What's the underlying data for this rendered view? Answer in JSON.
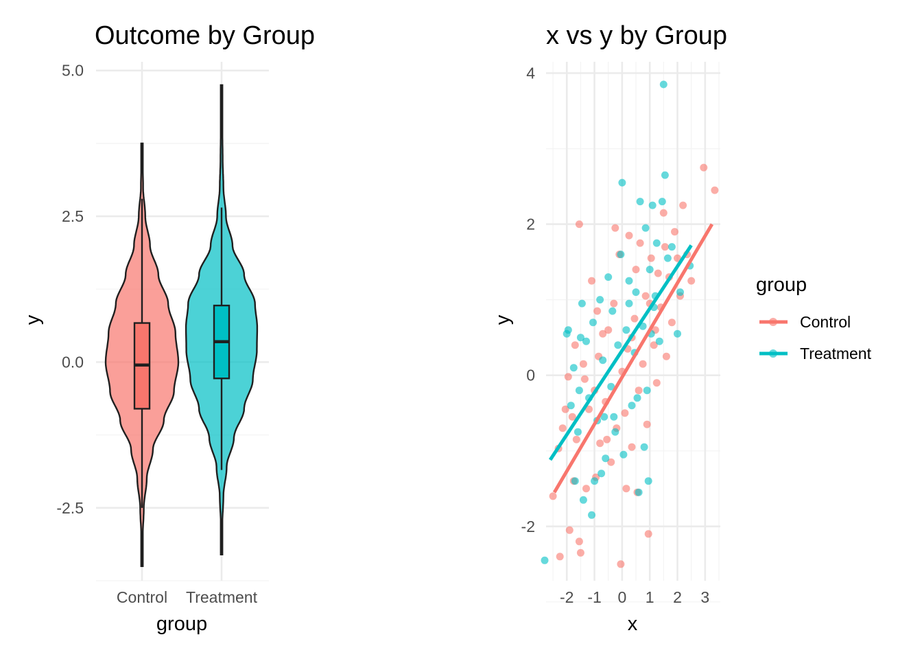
{
  "chart_data": [
    {
      "type": "violin",
      "title": "Outcome by Group",
      "xlabel": "group",
      "ylabel": "y",
      "categories": [
        "Control",
        "Treatment"
      ],
      "yticks": [
        -2.5,
        0.0,
        2.5,
        5.0
      ],
      "ytick_labels": [
        "-2.5",
        "0.0",
        "2.5",
        "5.0"
      ],
      "ylim": [
        -3.75,
        5.15
      ],
      "series": [
        {
          "name": "Control",
          "violin_min": -3.5,
          "violin_max": 3.75,
          "box": {
            "q1": -0.8,
            "median": -0.05,
            "q3": 0.67,
            "whisker_low": -2.5,
            "whisker_high": 2.8
          },
          "density_profile": [
            [
              -3.5,
              0.0
            ],
            [
              -3.0,
              0.02
            ],
            [
              -2.5,
              0.05
            ],
            [
              -2.0,
              0.13
            ],
            [
              -1.5,
              0.3
            ],
            [
              -1.0,
              0.6
            ],
            [
              -0.5,
              0.88
            ],
            [
              0.0,
              1.0
            ],
            [
              0.5,
              0.92
            ],
            [
              1.0,
              0.72
            ],
            [
              1.5,
              0.45
            ],
            [
              2.0,
              0.22
            ],
            [
              2.5,
              0.09
            ],
            [
              3.0,
              0.03
            ],
            [
              3.75,
              0.0
            ]
          ]
        },
        {
          "name": "Treatment",
          "violin_min": -3.3,
          "violin_max": 4.75,
          "box": {
            "q1": -0.28,
            "median": 0.35,
            "q3": 0.97,
            "whisker_low": -1.85,
            "whisker_high": 2.65
          },
          "density_profile": [
            [
              -3.3,
              0.0
            ],
            [
              -2.8,
              0.02
            ],
            [
              -2.3,
              0.05
            ],
            [
              -1.8,
              0.14
            ],
            [
              -1.3,
              0.34
            ],
            [
              -0.8,
              0.62
            ],
            [
              -0.3,
              0.86
            ],
            [
              0.2,
              0.97
            ],
            [
              0.6,
              0.98
            ],
            [
              1.0,
              0.92
            ],
            [
              1.5,
              0.62
            ],
            [
              2.0,
              0.3
            ],
            [
              2.5,
              0.12
            ],
            [
              3.0,
              0.05
            ],
            [
              3.5,
              0.03
            ],
            [
              4.0,
              0.02
            ],
            [
              4.75,
              0.0
            ]
          ]
        }
      ],
      "colors": {
        "Control": "#F8766D",
        "Treatment": "#00BFC4"
      }
    },
    {
      "type": "scatter",
      "title": "x vs y by Group",
      "xlabel": "x",
      "ylabel": "y",
      "xticks": [
        -2,
        -1,
        0,
        1,
        2,
        3
      ],
      "xtick_labels": [
        "-2",
        "-1",
        "0",
        "1",
        "2",
        "3"
      ],
      "yticks": [
        -2,
        0,
        2,
        4
      ],
      "ytick_labels": [
        "-2",
        "0",
        "2",
        "4"
      ],
      "xlim": [
        -2.75,
        3.55
      ],
      "ylim": [
        -2.72,
        4.15
      ],
      "legend": {
        "title": "group",
        "position": "right",
        "entries": [
          "Control",
          "Treatment"
        ]
      },
      "colors": {
        "Control": "#F8766D",
        "Treatment": "#00BFC4"
      },
      "fit_lines": [
        {
          "name": "Control",
          "x": [
            -2.45,
            3.25
          ],
          "y": [
            -1.55,
            2.0
          ]
        },
        {
          "name": "Treatment",
          "x": [
            -2.6,
            2.5
          ],
          "y": [
            -1.12,
            1.72
          ]
        }
      ],
      "series": [
        {
          "name": "Control",
          "points": [
            [
              -2.5,
              -1.6
            ],
            [
              -2.3,
              -0.97
            ],
            [
              -2.15,
              -0.7
            ],
            [
              -2.05,
              -0.45
            ],
            [
              -1.95,
              -0.02
            ],
            [
              -1.9,
              -2.05
            ],
            [
              -1.8,
              -0.55
            ],
            [
              -1.7,
              0.4
            ],
            [
              -1.65,
              -0.85
            ],
            [
              -1.55,
              -2.2
            ],
            [
              -1.5,
              -2.35
            ],
            [
              -1.4,
              0.15
            ],
            [
              -1.3,
              -1.5
            ],
            [
              -1.2,
              -0.45
            ],
            [
              -1.1,
              1.25
            ],
            [
              -1.0,
              -0.2
            ],
            [
              -0.95,
              -1.35
            ],
            [
              -0.9,
              0.85
            ],
            [
              -0.8,
              -0.9
            ],
            [
              -0.7,
              0.55
            ],
            [
              -0.6,
              -0.35
            ],
            [
              -0.5,
              0.6
            ],
            [
              -0.4,
              -1.15
            ],
            [
              -0.3,
              0.95
            ],
            [
              -0.2,
              -0.7
            ],
            [
              -0.1,
              1.6
            ],
            [
              0.0,
              0.05
            ],
            [
              0.1,
              -0.5
            ],
            [
              0.2,
              0.35
            ],
            [
              0.25,
              1.85
            ],
            [
              0.35,
              -0.95
            ],
            [
              0.45,
              0.75
            ],
            [
              0.5,
              1.4
            ],
            [
              0.6,
              -0.2
            ],
            [
              0.65,
              1.75
            ],
            [
              0.75,
              0.15
            ],
            [
              0.85,
              1.05
            ],
            [
              0.9,
              -0.65
            ],
            [
              1.0,
              0.95
            ],
            [
              1.05,
              1.55
            ],
            [
              1.15,
              0.4
            ],
            [
              1.25,
              -0.1
            ],
            [
              1.3,
              1.35
            ],
            [
              1.4,
              0.9
            ],
            [
              1.5,
              2.15
            ],
            [
              1.55,
              1.7
            ],
            [
              1.6,
              0.25
            ],
            [
              1.7,
              1.3
            ],
            [
              1.8,
              0.7
            ],
            [
              1.9,
              1.9
            ],
            [
              2.0,
              1.55
            ],
            [
              2.1,
              1.05
            ],
            [
              2.2,
              2.25
            ],
            [
              2.35,
              1.6
            ],
            [
              2.5,
              1.25
            ],
            [
              2.95,
              2.75
            ],
            [
              3.35,
              2.45
            ],
            [
              -1.55,
              2.0
            ],
            [
              -0.25,
              1.95
            ],
            [
              -0.05,
              -2.5
            ],
            [
              0.15,
              -1.5
            ],
            [
              0.95,
              -2.1
            ],
            [
              0.55,
              -1.55
            ],
            [
              -2.25,
              -2.4
            ],
            [
              -1.35,
              -0.05
            ],
            [
              -0.55,
              -0.85
            ],
            [
              0.35,
              0.5
            ],
            [
              1.2,
              0.6
            ],
            [
              -1.75,
              -1.4
            ],
            [
              -0.85,
              0.25
            ]
          ]
        },
        {
          "name": "Treatment",
          "points": [
            [
              -2.8,
              -2.45
            ],
            [
              -2.0,
              0.55
            ],
            [
              -1.95,
              0.6
            ],
            [
              -1.85,
              -0.4
            ],
            [
              -1.75,
              0.1
            ],
            [
              -1.7,
              -1.4
            ],
            [
              -1.6,
              -0.75
            ],
            [
              -1.5,
              0.5
            ],
            [
              -1.45,
              0.95
            ],
            [
              -1.4,
              -1.65
            ],
            [
              -1.3,
              0.45
            ],
            [
              -1.2,
              -0.3
            ],
            [
              -1.1,
              -1.85
            ],
            [
              -1.05,
              0.7
            ],
            [
              -1.0,
              -1.4
            ],
            [
              -0.9,
              -0.6
            ],
            [
              -0.8,
              1.0
            ],
            [
              -0.7,
              0.2
            ],
            [
              -0.6,
              -1.1
            ],
            [
              -0.5,
              1.3
            ],
            [
              -0.4,
              -0.15
            ],
            [
              -0.35,
              0.85
            ],
            [
              -0.25,
              -0.75
            ],
            [
              -0.15,
              0.4
            ],
            [
              -0.05,
              1.6
            ],
            [
              0.0,
              2.55
            ],
            [
              0.05,
              -1.05
            ],
            [
              0.15,
              0.6
            ],
            [
              0.25,
              1.25
            ],
            [
              0.35,
              -0.4
            ],
            [
              0.45,
              0.3
            ],
            [
              0.5,
              1.1
            ],
            [
              0.55,
              -0.3
            ],
            [
              0.65,
              2.3
            ],
            [
              0.75,
              0.65
            ],
            [
              0.85,
              1.95
            ],
            [
              0.9,
              -0.2
            ],
            [
              1.0,
              1.4
            ],
            [
              1.05,
              0.55
            ],
            [
              1.1,
              2.25
            ],
            [
              1.2,
              1.05
            ],
            [
              1.25,
              1.75
            ],
            [
              1.35,
              0.45
            ],
            [
              1.45,
              2.3
            ],
            [
              1.5,
              3.85
            ],
            [
              1.55,
              2.65
            ],
            [
              1.65,
              1.55
            ],
            [
              1.8,
              1.7
            ],
            [
              2.0,
              0.55
            ],
            [
              2.1,
              1.1
            ],
            [
              2.45,
              1.45
            ],
            [
              -0.75,
              -1.3
            ],
            [
              -0.3,
              -0.55
            ],
            [
              0.8,
              -0.95
            ],
            [
              0.95,
              -1.4
            ],
            [
              0.6,
              -1.55
            ],
            [
              -1.55,
              -0.2
            ],
            [
              -0.65,
              -0.55
            ],
            [
              0.25,
              0.95
            ],
            [
              1.15,
              0.9
            ]
          ]
        }
      ]
    }
  ]
}
